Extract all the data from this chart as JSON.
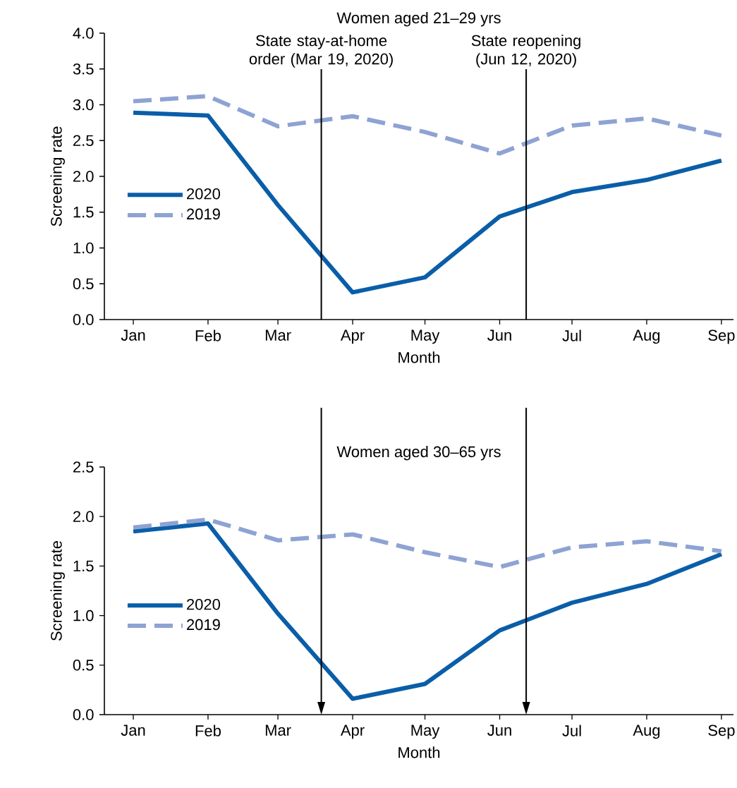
{
  "chart_data": [
    {
      "type": "line",
      "title": "Women aged 21–29 yrs",
      "xlabel": "Month",
      "ylabel": "Screening rate",
      "x": [
        "2020-01",
        "2020-02",
        "2020-03",
        "2020-04",
        "2020-05",
        "2020-06",
        "2020-07",
        "2020-08",
        "2020-09"
      ],
      "xlim": [
        "2019-12-20",
        "2020-09-06"
      ],
      "xticks": [
        {
          "value": "2020-01",
          "label": "Jan"
        },
        {
          "value": "2020-02",
          "label": "Feb"
        },
        {
          "value": "2020-03",
          "label": "Mar"
        },
        {
          "value": "2020-04",
          "label": "Apr"
        },
        {
          "value": "2020-05",
          "label": "May"
        },
        {
          "value": "2020-06",
          "label": "Jun"
        },
        {
          "value": "2020-07",
          "label": "Jul"
        },
        {
          "value": "2020-08",
          "label": "Aug"
        },
        {
          "value": "2020-09",
          "label": "Sep"
        }
      ],
      "series": [
        {
          "name": "2020",
          "color": "#0a5ea8",
          "line_style": "solid",
          "values": [
            2.89,
            2.85,
            1.6,
            0.38,
            0.59,
            1.44,
            1.78,
            1.95,
            2.22
          ]
        },
        {
          "name": "2019",
          "color": "#8ea3d3",
          "line_style": "dashed",
          "values": [
            3.05,
            3.12,
            2.7,
            2.84,
            2.62,
            2.32,
            2.71,
            2.81,
            2.57
          ]
        }
      ],
      "ylim": [
        0,
        4
      ],
      "yticks": [
        {
          "value": 0,
          "label": "0.0"
        },
        {
          "value": 0.5,
          "label": "0.5"
        },
        {
          "value": 1,
          "label": "1.0"
        },
        {
          "value": 1.5,
          "label": "1.5"
        },
        {
          "value": 2,
          "label": "2.0"
        },
        {
          "value": 2.5,
          "label": "2.5"
        },
        {
          "value": 3,
          "label": "3.0"
        },
        {
          "value": 3.5,
          "label": "3.5"
        },
        {
          "value": 4,
          "label": "4.0"
        }
      ],
      "legend": "left",
      "ref_lines": [
        {
          "axis": "x",
          "value": "2020-03-19",
          "label": "State stay-at-home order (Mar 19, 2020)"
        },
        {
          "axis": "x",
          "value": "2020-06-12",
          "label": "State reopening (Jun 12, 2020)"
        }
      ]
    },
    {
      "type": "line",
      "title": "Women aged 30–65 yrs",
      "xlabel": "Month",
      "ylabel": "Screening rate",
      "x": [
        "2020-01",
        "2020-02",
        "2020-03",
        "2020-04",
        "2020-05",
        "2020-06",
        "2020-07",
        "2020-08",
        "2020-09"
      ],
      "xlim": [
        "2019-12-20",
        "2020-09-06"
      ],
      "xticks": [
        {
          "value": "2020-01",
          "label": "Jan"
        },
        {
          "value": "2020-02",
          "label": "Feb"
        },
        {
          "value": "2020-03",
          "label": "Mar"
        },
        {
          "value": "2020-04",
          "label": "Apr"
        },
        {
          "value": "2020-05",
          "label": "May"
        },
        {
          "value": "2020-06",
          "label": "Jun"
        },
        {
          "value": "2020-07",
          "label": "Jul"
        },
        {
          "value": "2020-08",
          "label": "Aug"
        },
        {
          "value": "2020-09",
          "label": "Sep"
        }
      ],
      "series": [
        {
          "name": "2020",
          "color": "#0a5ea8",
          "line_style": "solid",
          "values": [
            1.85,
            1.93,
            1.02,
            0.16,
            0.31,
            0.85,
            1.13,
            1.32,
            1.62
          ]
        },
        {
          "name": "2019",
          "color": "#8ea3d3",
          "line_style": "dashed",
          "values": [
            1.89,
            1.97,
            1.76,
            1.82,
            1.64,
            1.49,
            1.69,
            1.75,
            1.65
          ]
        }
      ],
      "ylim": [
        0,
        2.5
      ],
      "yticks": [
        {
          "value": 0,
          "label": "0.0"
        },
        {
          "value": 0.5,
          "label": "0.5"
        },
        {
          "value": 1,
          "label": "1.0"
        },
        {
          "value": 1.5,
          "label": "1.5"
        },
        {
          "value": 2,
          "label": "2.0"
        },
        {
          "value": 2.5,
          "label": "2.5"
        }
      ],
      "legend": "left",
      "ref_lines": [
        {
          "axis": "x",
          "value": "2020-03-19"
        },
        {
          "axis": "x",
          "value": "2020-06-12"
        }
      ]
    }
  ]
}
